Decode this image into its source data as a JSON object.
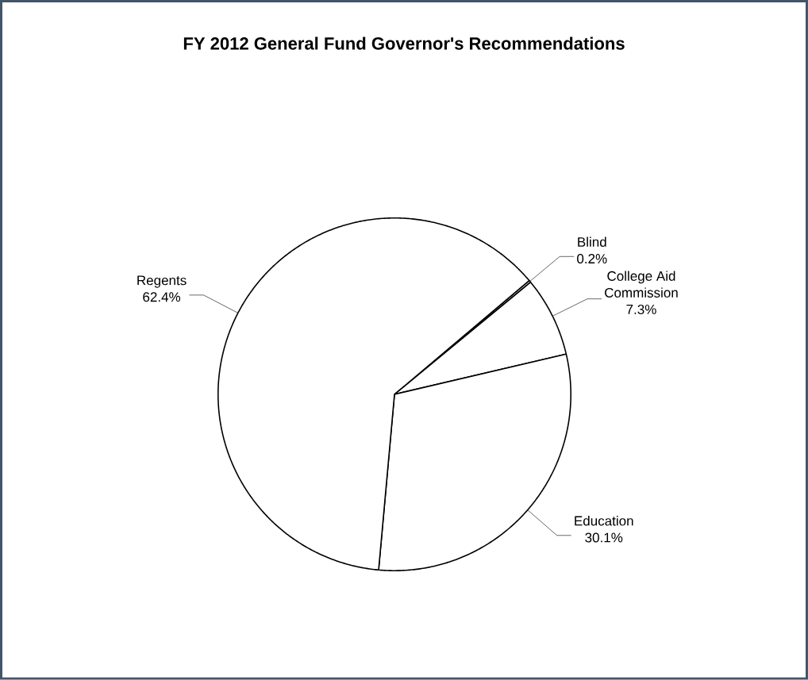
{
  "chart_data": {
    "type": "pie",
    "title": "FY 2012 General Fund Governor's Recommendations",
    "categories": [
      "Blind",
      "College Aid Commission",
      "Education",
      "Regents"
    ],
    "values": [
      0.2,
      7.3,
      30.1,
      62.4
    ],
    "value_labels": [
      "0.2%",
      "7.3%",
      "30.1%",
      "62.4%"
    ],
    "colors": [
      "#ffffff",
      "#ffffff",
      "#ffffff",
      "#ffffff"
    ],
    "legend": false
  }
}
